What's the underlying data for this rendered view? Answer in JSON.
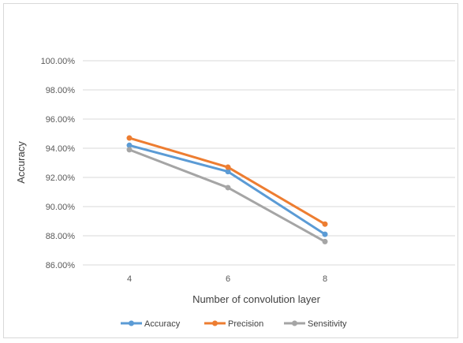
{
  "chart_data": {
    "type": "line",
    "title": "",
    "xlabel": "Number  of convolution layer",
    "ylabel": "Accuracy",
    "categories": [
      "4",
      "6",
      "8"
    ],
    "ylim": [
      86,
      100
    ],
    "yticks": [
      "86.00%",
      "88.00%",
      "90.00%",
      "92.00%",
      "94.00%",
      "96.00%",
      "98.00%",
      "100.00%"
    ],
    "grid": true,
    "legend_position": "bottom",
    "series": [
      {
        "name": "Accuracy",
        "values": [
          94.2,
          92.4,
          88.1
        ],
        "color": "#5b9bd5"
      },
      {
        "name": "Precision",
        "values": [
          94.7,
          92.7,
          88.8
        ],
        "color": "#ed7d31"
      },
      {
        "name": "Sensitivity",
        "values": [
          93.9,
          91.3,
          87.6
        ],
        "color": "#a5a5a5"
      }
    ]
  }
}
